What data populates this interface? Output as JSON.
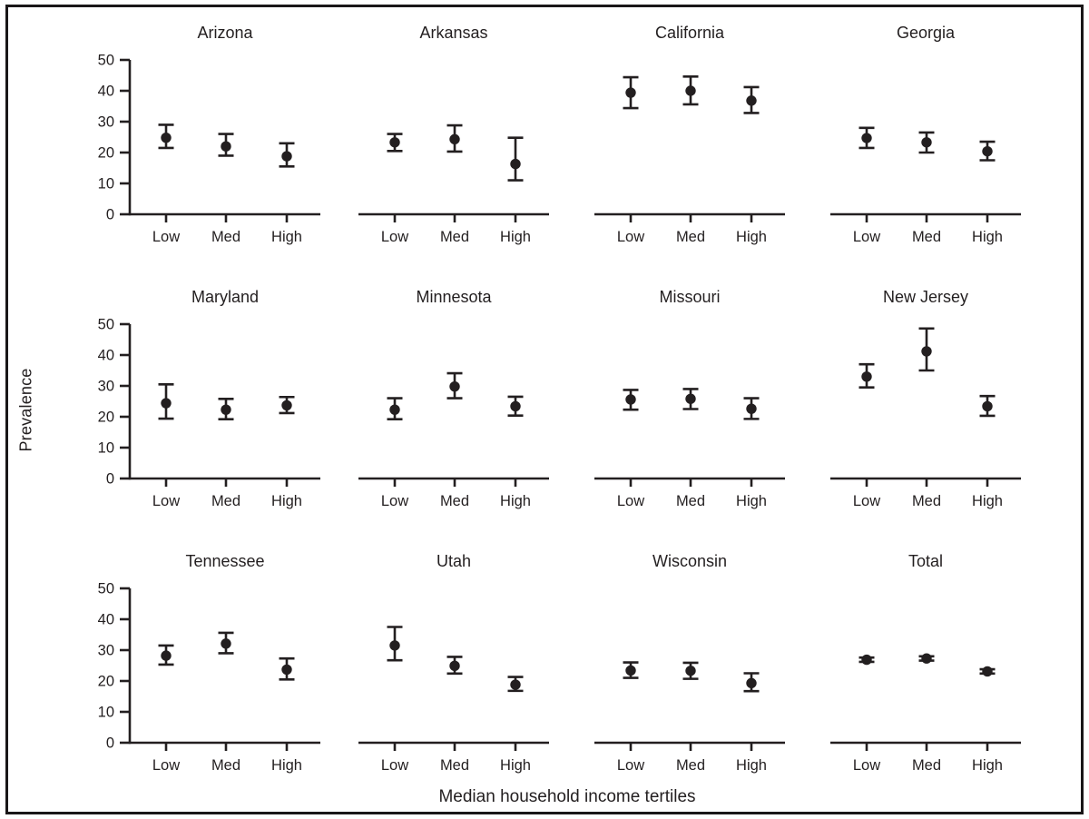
{
  "figure": {
    "y_axis_title": "Prevalence",
    "x_axis_title": "Median household income tertiles",
    "ink_color": "#231f20",
    "background_color": "#ffffff"
  },
  "chart_data": {
    "type": "scatter",
    "subtype": "point-estimate-with-error-bars",
    "layout": "small-multiples 4 columns x 3 rows",
    "categories": [
      "Low",
      "Med",
      "High"
    ],
    "xlabel": "Median household income tertiles",
    "ylabel": "Prevalence",
    "ylim": [
      0,
      50
    ],
    "yticks": [
      0,
      10,
      20,
      30,
      40,
      50
    ],
    "grid": "off",
    "legend": "none",
    "marker": "filled-circle",
    "error_bars": "95% confidence interval caps",
    "panels": [
      {
        "title": "Arizona",
        "values": [
          24.8,
          22.0,
          18.8
        ],
        "ci_low": [
          21.5,
          19.0,
          15.5
        ],
        "ci_high": [
          29.0,
          26.0,
          23.0
        ]
      },
      {
        "title": "Arkansas",
        "values": [
          23.3,
          24.3,
          16.3
        ],
        "ci_low": [
          20.5,
          20.3,
          11.0
        ],
        "ci_high": [
          26.0,
          28.8,
          24.8
        ]
      },
      {
        "title": "California",
        "values": [
          39.4,
          40.0,
          36.8
        ],
        "ci_low": [
          34.4,
          35.6,
          32.8
        ],
        "ci_high": [
          44.4,
          44.6,
          41.2
        ]
      },
      {
        "title": "Georgia",
        "values": [
          24.7,
          23.3,
          20.4
        ],
        "ci_low": [
          21.5,
          20.0,
          17.5
        ],
        "ci_high": [
          28.0,
          26.5,
          23.5
        ]
      },
      {
        "title": "Maryland",
        "values": [
          24.4,
          22.3,
          23.7
        ],
        "ci_low": [
          19.4,
          19.2,
          21.2
        ],
        "ci_high": [
          30.5,
          25.8,
          26.4
        ]
      },
      {
        "title": "Minnesota",
        "values": [
          22.3,
          29.8,
          23.4
        ],
        "ci_low": [
          19.2,
          26.0,
          20.4
        ],
        "ci_high": [
          26.0,
          34.1,
          26.5
        ]
      },
      {
        "title": "Missouri",
        "values": [
          25.6,
          25.8,
          22.6
        ],
        "ci_low": [
          22.3,
          22.5,
          19.3
        ],
        "ci_high": [
          28.7,
          29.0,
          26.0
        ]
      },
      {
        "title": "New Jersey",
        "values": [
          33.0,
          41.2,
          23.4
        ],
        "ci_low": [
          29.5,
          35.0,
          20.3
        ],
        "ci_high": [
          37.0,
          48.6,
          26.7
        ]
      },
      {
        "title": "Tennessee",
        "values": [
          28.2,
          32.1,
          23.7
        ],
        "ci_low": [
          25.3,
          29.0,
          20.5
        ],
        "ci_high": [
          31.5,
          35.6,
          27.3
        ]
      },
      {
        "title": "Utah",
        "values": [
          31.5,
          24.9,
          18.8
        ],
        "ci_low": [
          26.7,
          22.4,
          16.8
        ],
        "ci_high": [
          37.5,
          27.8,
          21.3
        ]
      },
      {
        "title": "Wisconsin",
        "values": [
          23.4,
          23.3,
          19.3
        ],
        "ci_low": [
          21.0,
          20.7,
          16.7
        ],
        "ci_high": [
          26.0,
          25.9,
          22.5
        ]
      },
      {
        "title": "Total",
        "values": [
          26.9,
          27.3,
          23.1
        ],
        "ci_low": [
          26.2,
          26.6,
          22.4
        ],
        "ci_high": [
          27.6,
          28.0,
          23.8
        ]
      }
    ]
  }
}
